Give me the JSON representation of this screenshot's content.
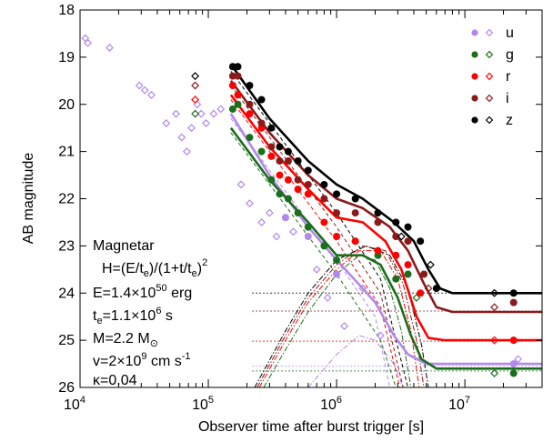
{
  "chart_data": {
    "type": "scatter",
    "title": "",
    "xlabel": "Observer time after burst trigger [s]",
    "ylabel": "AB magnitude",
    "x_scale": "log",
    "xlim": [
      10000,
      40000000
    ],
    "ylim": [
      26,
      18
    ],
    "y_inverted": true,
    "grid": false,
    "legend_position": "top-right",
    "x_ticks": [
      {
        "value": 10000,
        "base": "10",
        "exp": "4"
      },
      {
        "value": 100000,
        "base": "10",
        "exp": "5"
      },
      {
        "value": 1000000,
        "base": "10",
        "exp": "6"
      },
      {
        "value": 10000000,
        "base": "10",
        "exp": "7"
      }
    ],
    "y_ticks": [
      18,
      19,
      20,
      21,
      22,
      23,
      24,
      25,
      26
    ],
    "annotation": {
      "line1": "Magnetar",
      "line2_main": "H=(E/t",
      "line2_sub1": "e",
      "line2_mid": ")/(1+t/t",
      "line2_sub2": "e",
      "line2_end": ")",
      "line2_sup": "2",
      "line3_main": "E=1.4×10",
      "line3_sup": "50",
      "line3_end": " erg",
      "line4_t": "t",
      "line4_sub": "e",
      "line4_main": "=1.1×10",
      "line4_sup": "6",
      "line4_end": " s",
      "line5_main": "M=2.2 M",
      "line5_sub": "⊙",
      "line6_main": "v=2×10",
      "line6_sup": "9",
      "line6_mid": " cm s",
      "line6_sup2": "-1",
      "line7": "κ=0.04"
    },
    "series": [
      {
        "name": "u",
        "color": "#b388eb",
        "filled": [
          [
            400000.0,
            22.4
          ],
          [
            600000.0,
            22.8
          ],
          [
            1000000.0,
            23.6
          ],
          [
            24000000.0,
            25.5
          ]
        ],
        "open": [
          [
            11000.0,
            18.6
          ],
          [
            11500.0,
            18.7
          ],
          [
            17000.0,
            18.8
          ],
          [
            29000.0,
            19.6
          ],
          [
            32000.0,
            19.7
          ],
          [
            36000.0,
            19.8
          ],
          [
            47000.0,
            20.4
          ],
          [
            56000.0,
            20.2
          ],
          [
            62000.0,
            20.7
          ],
          [
            68000.0,
            21.0
          ],
          [
            74000.0,
            20.5
          ],
          [
            82000.0,
            20.0
          ],
          [
            88000.0,
            20.2
          ],
          [
            96000.0,
            20.4
          ],
          [
            110000.0,
            20.2
          ],
          [
            125000.0,
            20.1
          ],
          [
            180000.0,
            21.7
          ],
          [
            210000.0,
            22.1
          ],
          [
            260000.0,
            22.5
          ],
          [
            300000.0,
            22.3
          ],
          [
            340000.0,
            22.8
          ],
          [
            460000.0,
            22.7
          ],
          [
            700000.0,
            23.5
          ],
          [
            850000.0,
            24.1
          ],
          [
            1150000.0,
            24.7
          ],
          [
            1600000.0,
            23.9
          ],
          [
            2200000.0,
            24.9
          ],
          [
            26000000.0,
            25.4
          ]
        ]
      },
      {
        "name": "g",
        "color": "#1b6e1b",
        "filled": [
          [
            155000.0,
            20.1
          ],
          [
            170000.0,
            20.0
          ],
          [
            210000.0,
            20.7
          ],
          [
            260000.0,
            21.0
          ],
          [
            310000.0,
            21.6
          ],
          [
            360000.0,
            21.9
          ],
          [
            420000.0,
            22.0
          ],
          [
            500000.0,
            22.3
          ],
          [
            600000.0,
            22.6
          ],
          [
            800000.0,
            23.0
          ],
          [
            1000000.0,
            23.3
          ],
          [
            1400000.0,
            22.9
          ],
          [
            2100000.0,
            23.2
          ],
          [
            2900000.0,
            23.7
          ],
          [
            3600000.0,
            23.6
          ],
          [
            24000000.0,
            25.7
          ]
        ],
        "open": [
          [
            79000.0,
            20.2
          ],
          [
            4200000.0,
            24.1
          ],
          [
            17000000.0,
            25.7
          ]
        ]
      },
      {
        "name": "r",
        "color": "#ff0000",
        "filled": [
          [
            155000.0,
            19.6
          ],
          [
            170000.0,
            19.8
          ],
          [
            210000.0,
            20.2
          ],
          [
            260000.0,
            20.5
          ],
          [
            310000.0,
            21.1
          ],
          [
            360000.0,
            21.5
          ],
          [
            420000.0,
            21.6
          ],
          [
            500000.0,
            21.8
          ],
          [
            600000.0,
            21.9
          ],
          [
            800000.0,
            22.5
          ],
          [
            1000000.0,
            22.8
          ],
          [
            1400000.0,
            22.9
          ],
          [
            2100000.0,
            23.1
          ],
          [
            2900000.0,
            23.2
          ],
          [
            3600000.0,
            23.4
          ],
          [
            4500000.0,
            24.0
          ],
          [
            24000000.0,
            25.0
          ]
        ],
        "open": [
          [
            79000.0,
            19.9
          ],
          [
            17000000.0,
            25.0
          ]
        ]
      },
      {
        "name": "i",
        "color": "#8b1a1a",
        "filled": [
          [
            155000.0,
            19.4
          ],
          [
            170000.0,
            19.4
          ],
          [
            210000.0,
            20.0
          ],
          [
            260000.0,
            20.4
          ],
          [
            310000.0,
            20.9
          ],
          [
            360000.0,
            21.2
          ],
          [
            420000.0,
            21.2
          ],
          [
            500000.0,
            21.6
          ],
          [
            600000.0,
            21.7
          ],
          [
            800000.0,
            22.0
          ],
          [
            1000000.0,
            22.3
          ],
          [
            1400000.0,
            22.3
          ],
          [
            2100000.0,
            22.5
          ],
          [
            2900000.0,
            22.8
          ],
          [
            3600000.0,
            22.9
          ],
          [
            4800000.0,
            23.6
          ],
          [
            24000000.0,
            24.2
          ]
        ],
        "open": [
          [
            79000.0,
            19.6
          ],
          [
            5200000.0,
            23.9
          ],
          [
            17000000.0,
            24.3
          ]
        ]
      },
      {
        "name": "z",
        "color": "#000000",
        "filled": [
          [
            155000.0,
            19.2
          ],
          [
            170000.0,
            19.2
          ],
          [
            210000.0,
            19.6
          ],
          [
            260000.0,
            19.9
          ],
          [
            310000.0,
            20.5
          ],
          [
            360000.0,
            20.9
          ],
          [
            420000.0,
            21.0
          ],
          [
            500000.0,
            21.2
          ],
          [
            600000.0,
            21.4
          ],
          [
            800000.0,
            21.7
          ],
          [
            1000000.0,
            21.9
          ],
          [
            1400000.0,
            22.0
          ],
          [
            2100000.0,
            22.3
          ],
          [
            2900000.0,
            22.5
          ],
          [
            3600000.0,
            22.6
          ],
          [
            4500000.0,
            22.9
          ],
          [
            6000000.0,
            23.9
          ],
          [
            24000000.0,
            24.0
          ]
        ],
        "open": [
          [
            79000.0,
            19.4
          ],
          [
            3200000.0,
            22.8
          ],
          [
            5400000.0,
            23.4
          ],
          [
            17000000.0,
            24.0
          ]
        ]
      }
    ],
    "model_curves": [
      {
        "series": "u",
        "points": [
          [
            150000.0,
            20.2
          ],
          [
            300000.0,
            21.5
          ],
          [
            600000.0,
            22.6
          ],
          [
            1000000.0,
            23.3
          ],
          [
            1600000.0,
            23.9
          ],
          [
            2000000.0,
            24.2
          ],
          [
            2800000.0,
            24.9
          ],
          [
            3600000.0,
            25.3
          ],
          [
            5000000.0,
            25.5
          ],
          [
            40000000.0,
            25.5
          ]
        ]
      },
      {
        "series": "g",
        "points": [
          [
            150000.0,
            20.5
          ],
          [
            300000.0,
            21.6
          ],
          [
            600000.0,
            22.5
          ],
          [
            1000000.0,
            23.2
          ],
          [
            1600000.0,
            23.2
          ],
          [
            2200000.0,
            23.4
          ],
          [
            3000000.0,
            24.1
          ],
          [
            3800000.0,
            24.9
          ],
          [
            4600000.0,
            25.4
          ],
          [
            6000000.0,
            25.6
          ],
          [
            40000000.0,
            25.6
          ]
        ]
      },
      {
        "series": "r",
        "points": [
          [
            150000.0,
            19.8
          ],
          [
            300000.0,
            20.9
          ],
          [
            600000.0,
            21.8
          ],
          [
            1000000.0,
            22.4
          ],
          [
            1600000.0,
            22.5
          ],
          [
            2400000.0,
            22.9
          ],
          [
            3200000.0,
            23.5
          ],
          [
            4200000.0,
            24.5
          ],
          [
            5200000.0,
            24.95
          ],
          [
            7000000.0,
            25.0
          ],
          [
            40000000.0,
            25.0
          ]
        ]
      },
      {
        "series": "i",
        "points": [
          [
            150000.0,
            19.5
          ],
          [
            300000.0,
            20.6
          ],
          [
            600000.0,
            21.5
          ],
          [
            1000000.0,
            22.0
          ],
          [
            1600000.0,
            22.2
          ],
          [
            2600000.0,
            22.6
          ],
          [
            3600000.0,
            23.1
          ],
          [
            4800000.0,
            23.8
          ],
          [
            6000000.0,
            24.3
          ],
          [
            8000000.0,
            24.4
          ],
          [
            40000000.0,
            24.4
          ]
        ]
      },
      {
        "series": "z",
        "points": [
          [
            150000.0,
            19.15
          ],
          [
            300000.0,
            20.3
          ],
          [
            600000.0,
            21.2
          ],
          [
            1000000.0,
            21.7
          ],
          [
            1600000.0,
            22.0
          ],
          [
            2800000.0,
            22.5
          ],
          [
            4000000.0,
            22.9
          ],
          [
            5200000.0,
            23.5
          ],
          [
            6400000.0,
            23.9
          ],
          [
            8000000.0,
            24.0
          ],
          [
            40000000.0,
            24.0
          ]
        ]
      }
    ],
    "kilonova_curves": [
      {
        "series": "u",
        "points": [
          [
            600000.0,
            26
          ],
          [
            1000000.0,
            25.3
          ],
          [
            1500000.0,
            24.9
          ],
          [
            2000000.0,
            25.0
          ],
          [
            2800000.0,
            25.5
          ],
          [
            3300000.0,
            26
          ]
        ]
      },
      {
        "series": "g",
        "points": [
          [
            270000.0,
            26
          ],
          [
            400000.0,
            25.2
          ],
          [
            600000.0,
            24.4
          ],
          [
            1000000.0,
            23.6
          ],
          [
            1500000.0,
            23.2
          ],
          [
            2000000.0,
            23.3
          ],
          [
            2600000.0,
            23.9
          ],
          [
            3200000.0,
            24.8
          ],
          [
            3800000.0,
            26
          ]
        ]
      },
      {
        "series": "r",
        "points": [
          [
            250000.0,
            26
          ],
          [
            400000.0,
            25.0
          ],
          [
            600000.0,
            24.2
          ],
          [
            1000000.0,
            23.5
          ],
          [
            1500000.0,
            23.1
          ],
          [
            2200000.0,
            23.1
          ],
          [
            3000000.0,
            23.7
          ],
          [
            3800000.0,
            24.8
          ],
          [
            4400000.0,
            26
          ]
        ]
      },
      {
        "series": "i",
        "points": [
          [
            240000.0,
            26
          ],
          [
            400000.0,
            24.9
          ],
          [
            600000.0,
            24.1
          ],
          [
            1000000.0,
            23.4
          ],
          [
            1600000.0,
            23.0
          ],
          [
            2400000.0,
            23.1
          ],
          [
            3300000.0,
            23.8
          ],
          [
            4200000.0,
            25.0
          ],
          [
            4800000.0,
            26
          ]
        ]
      },
      {
        "series": "z",
        "points": [
          [
            230000.0,
            26
          ],
          [
            400000.0,
            24.8
          ],
          [
            600000.0,
            24.0
          ],
          [
            1000000.0,
            23.3
          ],
          [
            1700000.0,
            23.0
          ],
          [
            2600000.0,
            23.2
          ],
          [
            3600000.0,
            23.9
          ],
          [
            4600000.0,
            25.1
          ],
          [
            5200000.0,
            26
          ]
        ]
      }
    ],
    "afterglow_curves": [
      {
        "series": "u",
        "points": [
          [
            150000.0,
            20.3
          ],
          [
            1000000.0,
            23.3
          ],
          [
            2000000.0,
            24.5
          ],
          [
            2600000.0,
            26
          ]
        ]
      },
      {
        "series": "g",
        "points": [
          [
            150000.0,
            20.6
          ],
          [
            1000000.0,
            23.6
          ],
          [
            2200000.0,
            25.0
          ],
          [
            2900000.0,
            26
          ]
        ]
      },
      {
        "series": "r",
        "points": [
          [
            150000.0,
            19.9
          ],
          [
            1000000.0,
            22.9
          ],
          [
            2200000.0,
            24.3
          ],
          [
            3100000.0,
            26
          ]
        ]
      },
      {
        "series": "i",
        "points": [
          [
            150000.0,
            19.6
          ],
          [
            1000000.0,
            22.6
          ],
          [
            2200000.0,
            24.0
          ],
          [
            3300000.0,
            26
          ]
        ]
      },
      {
        "series": "z",
        "points": [
          [
            150000.0,
            19.3
          ],
          [
            1000000.0,
            22.3
          ],
          [
            2200000.0,
            23.7
          ],
          [
            3600000.0,
            26
          ]
        ]
      }
    ],
    "host_levels": [
      {
        "series": "u",
        "value": 25.55
      },
      {
        "series": "g",
        "value": 25.65
      },
      {
        "series": "r",
        "value": 25.02
      },
      {
        "series": "i",
        "value": 24.38
      },
      {
        "series": "z",
        "value": 24.0
      }
    ]
  }
}
